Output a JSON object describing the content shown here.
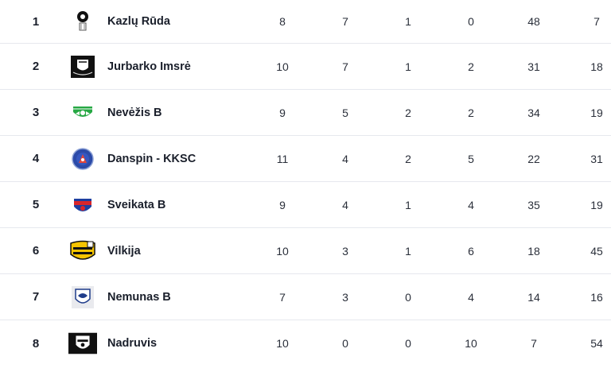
{
  "standings": {
    "rows": [
      {
        "pos": "1",
        "team": "Kazlų Rūda",
        "logo": "kazlu-ruda-crest-icon",
        "c1": "8",
        "c2": "7",
        "c3": "1",
        "c4": "0",
        "c5": "48",
        "c6": "7"
      },
      {
        "pos": "2",
        "team": "Jurbarko Imsrė",
        "logo": "jurbarko-imsre-crest-icon",
        "c1": "10",
        "c2": "7",
        "c3": "1",
        "c4": "2",
        "c5": "31",
        "c6": "18"
      },
      {
        "pos": "3",
        "team": "Nevėžis B",
        "logo": "nevezis-crest-icon",
        "c1": "9",
        "c2": "5",
        "c3": "2",
        "c4": "2",
        "c5": "34",
        "c6": "19"
      },
      {
        "pos": "4",
        "team": "Danspin - KKSC",
        "logo": "danspin-kksc-crest-icon",
        "c1": "11",
        "c2": "4",
        "c3": "2",
        "c4": "5",
        "c5": "22",
        "c6": "31"
      },
      {
        "pos": "5",
        "team": "Sveikata B",
        "logo": "sveikata-crest-icon",
        "c1": "9",
        "c2": "4",
        "c3": "1",
        "c4": "4",
        "c5": "35",
        "c6": "19"
      },
      {
        "pos": "6",
        "team": "Vilkija",
        "logo": "vilkija-crest-icon",
        "c1": "10",
        "c2": "3",
        "c3": "1",
        "c4": "6",
        "c5": "18",
        "c6": "45"
      },
      {
        "pos": "7",
        "team": "Nemunas B",
        "logo": "nemunas-crest-icon",
        "c1": "7",
        "c2": "3",
        "c3": "0",
        "c4": "4",
        "c5": "14",
        "c6": "16"
      },
      {
        "pos": "8",
        "team": "Nadruvis",
        "logo": "nadruvis-crest-icon",
        "c1": "10",
        "c2": "0",
        "c3": "0",
        "c4": "10",
        "c5": "7",
        "c6": "54"
      }
    ]
  }
}
